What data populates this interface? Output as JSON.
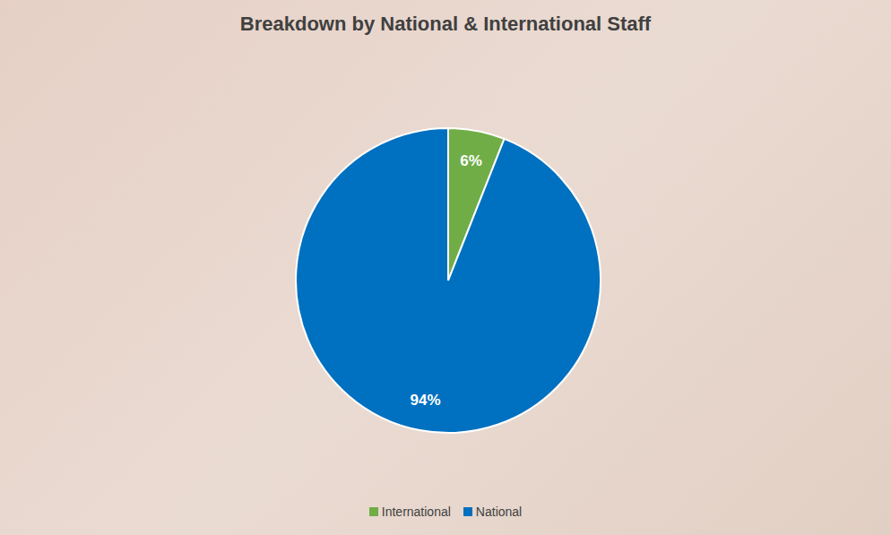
{
  "chart_data": {
    "type": "pie",
    "title": "Breakdown by National & International Staff",
    "categories": [
      "International",
      "National"
    ],
    "values": [
      6,
      94
    ],
    "value_labels": [
      "6%",
      "94%"
    ],
    "colors": [
      "#70ad47",
      "#0070c0"
    ],
    "data_labels": true,
    "legend": "bottom"
  }
}
